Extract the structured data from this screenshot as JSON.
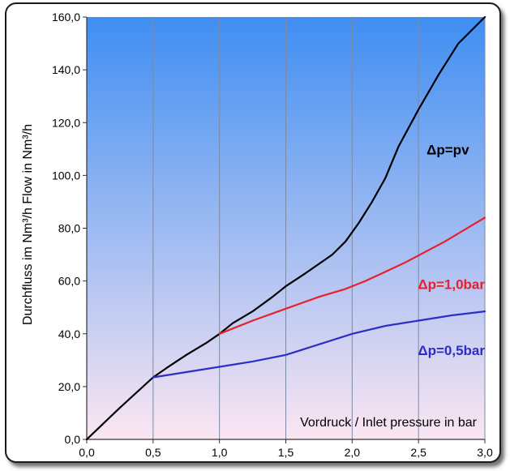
{
  "chart_data": {
    "type": "line",
    "title": "",
    "xlabel": "Vordruck / Inlet pressure in bar",
    "ylabel": "Durchfluss im Nm³/h  Flow in Nm³/h",
    "xlim": [
      0,
      3
    ],
    "ylim": [
      0,
      160
    ],
    "x_tick_values": [
      0,
      0.5,
      1,
      1.5,
      2,
      2.5,
      3
    ],
    "x_tick_labels": [
      "0,0",
      "0,5",
      "1,0",
      "1,5",
      "2,0",
      "2,5",
      "3,0"
    ],
    "y_tick_values": [
      0,
      20,
      40,
      60,
      80,
      100,
      120,
      140,
      160
    ],
    "y_tick_labels": [
      "0,0",
      "20,0",
      "40,0",
      "60,0",
      "80,0",
      "100,0",
      "120,0",
      "140,0",
      "160,0"
    ],
    "grid": "vertical",
    "background": {
      "top": "#3f8ef2",
      "bottom": "#fbe6f2"
    },
    "series": [
      {
        "name": "Δp=pv",
        "color": "#000000",
        "x": [
          0,
          0.25,
          0.5,
          0.6,
          0.75,
          0.9,
          1.0,
          1.1,
          1.25,
          1.4,
          1.5,
          1.65,
          1.75,
          1.85,
          1.95,
          2.05,
          2.15,
          2.25,
          2.35,
          2.5,
          2.65,
          2.8,
          3.0
        ],
        "y": [
          0,
          12,
          23.5,
          27,
          32,
          36.5,
          40,
          44,
          48.5,
          54,
          58,
          63,
          66.5,
          70,
          75,
          82,
          90,
          99,
          111,
          125,
          138,
          150,
          160
        ]
      },
      {
        "name": "Δp=1,0bar",
        "color": "#e8202a",
        "x": [
          1.0,
          1.25,
          1.5,
          1.75,
          1.95,
          2.1,
          2.25,
          2.4,
          2.55,
          2.7,
          2.85,
          3.0
        ],
        "y": [
          40,
          45,
          49.5,
          54,
          57,
          60,
          63.5,
          67,
          71,
          75,
          79.5,
          84
        ]
      },
      {
        "name": "Δp=0,5bar",
        "color": "#2b2fc6",
        "x": [
          0.5,
          0.75,
          1.0,
          1.25,
          1.5,
          1.75,
          2.0,
          2.25,
          2.5,
          2.75,
          3.0
        ],
        "y": [
          23.5,
          25.5,
          27.5,
          29.5,
          32,
          36,
          40,
          43,
          45,
          47,
          48.5
        ]
      }
    ]
  }
}
